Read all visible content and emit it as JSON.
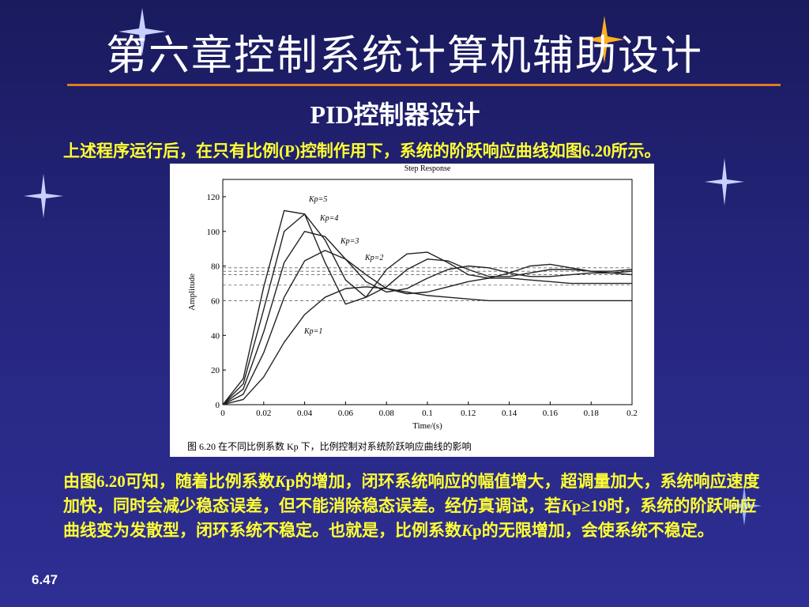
{
  "header": {
    "title": "第六章控制系统计算机辅助设计",
    "subtitle": "PID控制器设计"
  },
  "intro": "上述程序运行后，在只有比例(P)控制作用下，系统的阶跃响应曲线如图6.20所示。",
  "chart_data": {
    "type": "line",
    "title": "Step Response",
    "x_label": "Time/(s)",
    "y_label": "Amplitude",
    "caption": "图 6.20   在不同比例系数 Kp 下，比例控制对系统阶跃响应曲线的影响",
    "x": [
      0,
      0.01,
      0.02,
      0.03,
      0.04,
      0.05,
      0.06,
      0.07,
      0.08,
      0.09,
      0.1,
      0.11,
      0.12,
      0.13,
      0.14,
      0.15,
      0.16,
      0.17,
      0.18,
      0.19,
      0.2
    ],
    "series": [
      {
        "name": "Kp=1",
        "color": "#222222",
        "values": [
          0,
          3,
          16,
          36,
          52,
          62,
          67,
          68,
          67,
          65,
          63,
          62,
          61,
          60,
          60,
          60,
          60,
          60,
          60,
          60,
          60
        ]
      },
      {
        "name": "Kp=2",
        "color": "#222222",
        "values": [
          0,
          6,
          30,
          62,
          83,
          89,
          84,
          75,
          67,
          64,
          65,
          68,
          71,
          73,
          73,
          72,
          71,
          70,
          70,
          70,
          70
        ]
      },
      {
        "name": "Kp=3",
        "color": "#222222",
        "values": [
          0,
          9,
          42,
          82,
          100,
          97,
          84,
          71,
          65,
          67,
          73,
          78,
          80,
          79,
          76,
          74,
          74,
          75,
          76,
          76,
          75
        ]
      },
      {
        "name": "Kp=4",
        "color": "#222222",
        "values": [
          0,
          12,
          55,
          100,
          110,
          95,
          72,
          62,
          68,
          78,
          84,
          83,
          78,
          74,
          74,
          76,
          78,
          78,
          77,
          76,
          77
        ]
      },
      {
        "name": "Kp=5",
        "color": "#222222",
        "values": [
          0,
          15,
          68,
          112,
          110,
          82,
          58,
          62,
          78,
          87,
          88,
          82,
          75,
          73,
          76,
          80,
          81,
          79,
          77,
          77,
          78
        ]
      }
    ],
    "reference_lines": [
      60,
      69,
      75,
      77,
      79
    ],
    "xlim": [
      0,
      0.2
    ],
    "xticks": [
      0,
      0.02,
      0.04,
      0.06,
      0.08,
      0.1,
      0.12,
      0.14,
      0.16,
      0.18,
      0.2
    ],
    "ylim": [
      0,
      130
    ],
    "yticks": [
      0,
      20,
      40,
      60,
      80,
      100,
      120
    ],
    "grid": false
  },
  "conclusion": [
    "由图6.20可知，随着比例系数",
    "K",
    "p的增加，闭环系统响应的幅值增大，超调量加大，系统响应速度加快，同时会减少稳态误差，但不能消除稳态误差。经仿真调试，若",
    "K",
    "p≥19时，系统的阶跃响应曲线变为发散型，闭环系统不稳定。也就是，比例系数",
    "K",
    "p的无限增加，会使系统不稳定。"
  ],
  "footer": {
    "page": "6.47"
  }
}
